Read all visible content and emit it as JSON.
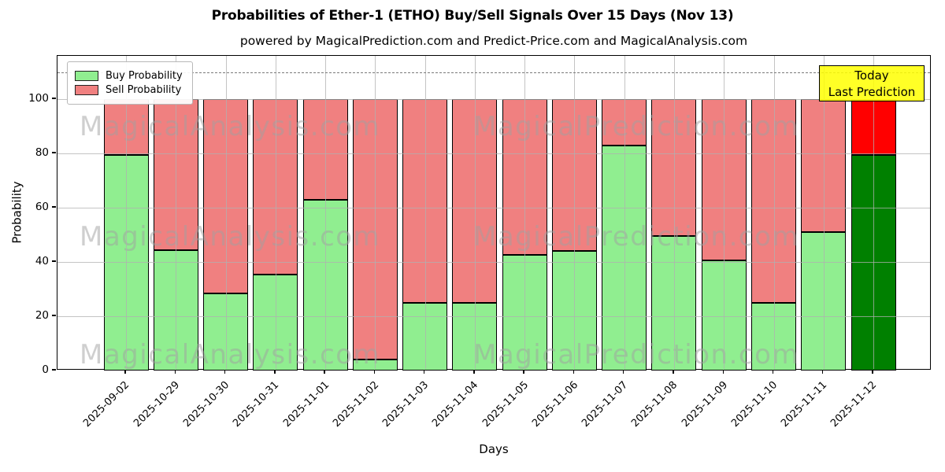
{
  "title": "Probabilities of Ether-1 (ETHO) Buy/Sell Signals Over 15 Days (Nov 13)",
  "subtitle": "powered by MagicalPrediction.com and Predict-Price.com and MagicalAnalysis.com",
  "annotation": {
    "line1": "Today",
    "line2": "Last Prediction"
  },
  "legend": [
    {
      "label": "Buy Probability",
      "color": "#90ee90"
    },
    {
      "label": "Sell Probability",
      "color": "#f08080"
    }
  ],
  "watermarks": [
    "MagicalAnalysis.com",
    "MagicalPrediction.com"
  ],
  "colors": {
    "buy": "#90ee90",
    "sell": "#f08080",
    "today_buy": "#008000",
    "today_sell": "#ff0000",
    "bar_edge": "#000000",
    "grid": "#b0b0b0",
    "dashed_line": "#7a7a7a",
    "annotation_bg": "#ffff00",
    "watermark": "#a0a0a0"
  },
  "chart_data": {
    "type": "bar",
    "stacked": true,
    "title": "Probabilities of Ether-1 (ETHO) Buy/Sell Signals Over 15 Days (Nov 13)",
    "xlabel": "Days",
    "ylabel": "Probability",
    "categories": [
      "2025-09-02",
      "2025-10-29",
      "2025-10-30",
      "2025-10-31",
      "2025-11-01",
      "2025-11-02",
      "2025-11-03",
      "2025-11-04",
      "2025-11-05",
      "2025-11-06",
      "2025-11-07",
      "2025-11-08",
      "2025-11-09",
      "2025-11-10",
      "2025-11-11",
      "2025-11-12"
    ],
    "series": [
      {
        "name": "Buy Probability",
        "values": [
          79.5,
          44.5,
          28.5,
          35.5,
          63,
          4,
          25,
          25,
          42.5,
          44,
          83,
          49.5,
          40.5,
          25,
          51,
          79.5
        ]
      },
      {
        "name": "Sell Probability",
        "values": [
          20.5,
          55.5,
          71.5,
          64.5,
          37,
          96,
          75,
          75,
          57.5,
          56,
          17,
          50.5,
          59.5,
          75,
          49,
          20.5
        ]
      }
    ],
    "today_index": 15,
    "yticks": [
      0,
      20,
      40,
      60,
      80,
      100
    ],
    "ylim": [
      0,
      116
    ],
    "dashed_line_y": 110,
    "grid": true,
    "legend_position": "upper left"
  }
}
